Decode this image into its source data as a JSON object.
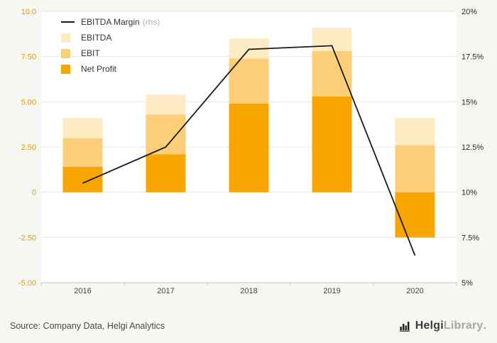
{
  "chart_data": {
    "type": "bar",
    "subtype": "stacked-bars-with-line-overlay",
    "title": "",
    "categories": [
      "2016",
      "2017",
      "2018",
      "2019",
      "2020"
    ],
    "stacked": true,
    "series": [
      {
        "name": "Net Profit",
        "color": "#F7A600",
        "values": [
          1.4,
          2.1,
          4.9,
          5.3,
          -2.5
        ]
      },
      {
        "name": "EBIT",
        "color": "#FBCE77",
        "values": [
          1.6,
          2.2,
          2.5,
          2.5,
          2.6
        ]
      },
      {
        "name": "EBITDA",
        "color": "#FDEBC3",
        "values": [
          1.1,
          1.1,
          1.1,
          1.3,
          1.5
        ]
      }
    ],
    "line_series": {
      "name": "EBITDA Margin",
      "legend_suffix": "(rhs)",
      "axis": "right",
      "color": "#1A1A1A",
      "values": [
        10.5,
        12.5,
        17.9,
        18.1,
        6.5
      ]
    },
    "left_axis": {
      "min": -5,
      "max": 10,
      "tick_labels": [
        "10.0",
        "7.50",
        "5.00",
        "2.50",
        "0",
        "-2.50",
        "-5.00"
      ],
      "tick_values": [
        10,
        7.5,
        5,
        2.5,
        0,
        -2.5,
        -5
      ],
      "label_color": "#E59B00"
    },
    "right_axis": {
      "min": 5,
      "max": 20,
      "tick_labels": [
        "20%",
        "17.5%",
        "15%",
        "12.5%",
        "10%",
        "7.5%",
        "5%"
      ],
      "tick_values": [
        20,
        17.5,
        15,
        12.5,
        10,
        7.5,
        5
      ],
      "label_color": "#2B2B2B"
    },
    "legend": [
      {
        "label": "EBITDA Margin",
        "suffix": "(rhs)",
        "sample": "line",
        "color": "#1A1A1A"
      },
      {
        "label": "EBITDA",
        "suffix": "",
        "sample": "swatch",
        "color": "#FDEBC3"
      },
      {
        "label": "EBIT",
        "suffix": "",
        "sample": "swatch",
        "color": "#FBCE77"
      },
      {
        "label": "Net Profit",
        "suffix": "",
        "sample": "swatch",
        "color": "#F7A600"
      }
    ],
    "grid": true,
    "legend_position": "top-left-inside",
    "plot_background": "#FFFFFF",
    "page_background": "#F6F6F3",
    "gridline_color": "#E6E6E6",
    "axis_line_color": "#C4C4C4",
    "category_label_color": "#444444"
  },
  "footer": {
    "source": "Source: Company Data, Helgi Analytics",
    "logo": {
      "name_primary": "Helgi",
      "name_secondary": "Library",
      "suffix": "."
    }
  }
}
